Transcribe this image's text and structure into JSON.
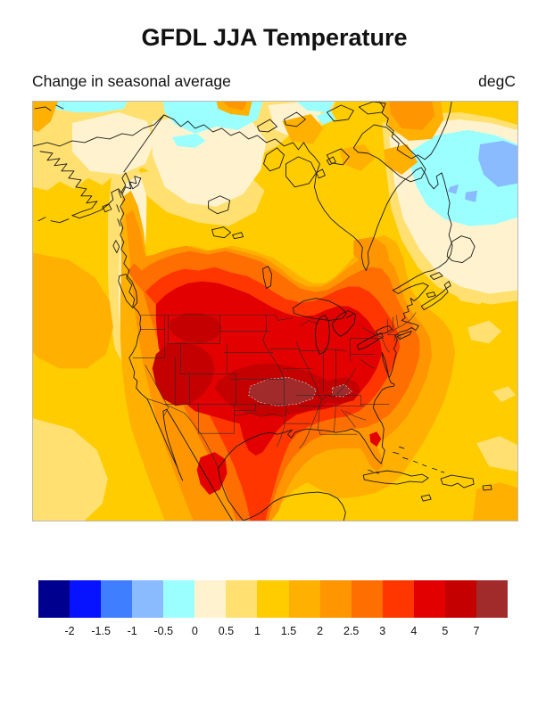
{
  "header": {
    "title": "GFDL JJA Temperature",
    "subtitle_left": "Change in seasonal average",
    "subtitle_right": "degC"
  },
  "chart_data": {
    "type": "heatmap",
    "subtype": "filled-contour-map",
    "title": "GFDL JJA Temperature",
    "subtitle": "Change in seasonal average",
    "units": "degC",
    "region": "North America",
    "grid": "off",
    "legend_position": "bottom",
    "colorbar": {
      "orientation": "horizontal",
      "tick_labels": [
        "-2",
        "-1.5",
        "-1",
        "-0.5",
        "0",
        "0.5",
        "1",
        "1.5",
        "2",
        "2.5",
        "3",
        "4",
        "5",
        "7"
      ],
      "band_colors": [
        "#00008F",
        "#0713FF",
        "#3F7FFF",
        "#8ABAFF",
        "#9BFFFF",
        "#FFF3CF",
        "#FFE070",
        "#FFCC00",
        "#FFB000",
        "#FF9500",
        "#FF6E00",
        "#FF3600",
        "#E30000",
        "#C40000",
        "#A12B2B"
      ],
      "band_ranges": [
        "< -2",
        "-2 to -1.5",
        "-1.5 to -1",
        "-1 to -0.5",
        "-0.5 to 0",
        "0 to 0.5",
        "0.5 to 1",
        "1 to 1.5",
        "1.5 to 2",
        "2 to 2.5",
        "2.5 to 3",
        "3 to 4",
        "4 to 5",
        "5 to 7",
        "> 7"
      ]
    },
    "map_values": [
      {
        "area": "Central Great Plains core (Kansas-Nebraska-Missouri)",
        "change_degC": "> 7 peak inside 5 to 7 band"
      },
      {
        "area": "Great Basin / Utah / Wyoming / Montana",
        "change_degC": "5 to 7"
      },
      {
        "area": "Tennessee-Kentucky patch",
        "change_degC": "5 to 7"
      },
      {
        "area": "Most of western and central United States",
        "change_degC": "3 to 5"
      },
      {
        "area": "East coast, Gulf coast states",
        "change_degC": "2.5 to 4"
      },
      {
        "area": "Interior Mexico",
        "change_degC": "3 to 5"
      },
      {
        "area": "Southern Canada",
        "change_degC": "2 to 3"
      },
      {
        "area": "Arctic Canada, Alaska interior, Labrador",
        "change_degC": "0 to 1"
      },
      {
        "area": "Arctic coastal patches",
        "change_degC": "-0.5 to 0"
      },
      {
        "area": "North Atlantic southeast of Greenland",
        "change_degC": "-1 to -0.5"
      },
      {
        "area": "Mid-latitude Pacific and Atlantic oceans",
        "change_degC": "1 to 2"
      }
    ]
  },
  "colors": {
    "page_bg": "#ffffff",
    "map_frame": "#b9b9b9",
    "coastline": "#1a1a1a",
    "state_border": "#2a2a2a",
    "inner_contour_dash": "#cccccc",
    "ocean_base": "#FFCC00",
    "text": "#111111"
  }
}
